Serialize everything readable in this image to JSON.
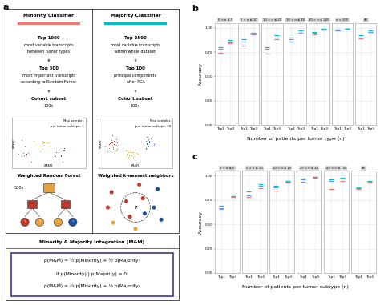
{
  "diagram": {
    "panel_label": "a",
    "query_symbol": "?",
    "columns": [
      {
        "title": "Minority Classifier",
        "color": "#f8766d",
        "steps": [
          [
            "Top 1000",
            "most variable transcripts",
            "between tumor types"
          ],
          [
            "Top 300",
            "most important transcripts",
            "according to Random Forest"
          ],
          [
            "Cohort subset",
            "100x"
          ]
        ],
        "umap": {
          "note": [
            "Max samples",
            "per tumor subtype: 3"
          ],
          "axes": [
            "UMAP1",
            "UMAP2"
          ]
        },
        "model": "Weighted Random Forest",
        "repeat": "500x"
      },
      {
        "title": "Majority Classifier",
        "color": "#00bfc4",
        "steps": [
          [
            "Top 2500",
            "most variable transcripts",
            "within whole dataset"
          ],
          [
            "Top 100",
            "principal components",
            "after PCA"
          ],
          [
            "Cohort subset",
            "100x"
          ]
        ],
        "umap": {
          "note": [
            "Max samples",
            "per tumor subtype: 30"
          ],
          "axes": [
            "UMAP1",
            "UMAP2"
          ]
        },
        "model": "Weighted k-nearest neighbors"
      }
    ],
    "integration": {
      "title": "Minority & Majority integration (M&M)",
      "lines": [
        "p(M&M) = ½ p(Minority) + ½ p(Majority)",
        "If p(Minority) | p(Majority) = 0;",
        "p(M&M) = ⅔ p(Minority) + ⅓ p(Majority)"
      ]
    }
  },
  "chart_data": [
    {
      "panel_label": "b",
      "type": "scatter",
      "marker": "line",
      "grid": true,
      "ylabel": "Accuracy",
      "xlabel": "Number of patients per tumor type (n)",
      "ylim": [
        0,
        1.05
      ],
      "yticks": [
        {
          "value": 0,
          "label": "0.00"
        },
        {
          "value": 0.25,
          "label": "0.25"
        },
        {
          "value": 0.5,
          "label": "0.50"
        },
        {
          "value": 0.75,
          "label": "0.75"
        },
        {
          "value": 1,
          "label": "1.00"
        }
      ],
      "categories": [
        "Top1",
        "Top3"
      ],
      "facets": [
        {
          "title": "0 < n ≤ 5",
          "series": [
            {
              "color": "#f8766d",
              "values": [
                0.74,
                0.84
              ]
            },
            {
              "color": "#619cff",
              "values": [
                0.78,
                0.85
              ]
            },
            {
              "color": "#00bfc4",
              "values": [
                0.8,
                0.87
              ]
            }
          ]
        },
        {
          "title": "5 < n ≤ 10",
          "series": [
            {
              "color": "#f8766d",
              "values": [
                0.82,
                0.93
              ]
            },
            {
              "color": "#619cff",
              "values": [
                0.86,
                0.93
              ]
            },
            {
              "color": "#00bfc4",
              "values": [
                0.88,
                0.95
              ]
            }
          ]
        },
        {
          "title": "10 < n ≤ 20",
          "series": [
            {
              "color": "#f8766d",
              "values": [
                0.78,
                0.9
              ]
            },
            {
              "color": "#619cff",
              "values": [
                0.73,
                0.88
              ]
            },
            {
              "color": "#00bfc4",
              "values": [
                0.8,
                0.92
              ]
            }
          ]
        },
        {
          "title": "20 < n ≤ 40",
          "series": [
            {
              "color": "#f8766d",
              "values": [
                0.88,
                0.95
              ]
            },
            {
              "color": "#619cff",
              "values": [
                0.86,
                0.95
              ]
            },
            {
              "color": "#00bfc4",
              "values": [
                0.9,
                0.97
              ]
            }
          ]
        },
        {
          "title": "40 < n ≤ 100",
          "series": [
            {
              "color": "#f8766d",
              "values": [
                0.93,
                0.98
              ]
            },
            {
              "color": "#619cff",
              "values": [
                0.95,
                0.98
              ]
            },
            {
              "color": "#00bfc4",
              "values": [
                0.96,
                0.99
              ]
            }
          ]
        },
        {
          "title": "n > 100",
          "series": [
            {
              "color": "#f8766d",
              "values": [
                0.97,
                0.99
              ]
            },
            {
              "color": "#619cff",
              "values": [
                0.97,
                0.99
              ]
            },
            {
              "color": "#00bfc4",
              "values": [
                0.98,
                0.99
              ]
            }
          ]
        },
        {
          "title": "All",
          "series": [
            {
              "color": "#f8766d",
              "values": [
                0.89,
                0.96
              ]
            },
            {
              "color": "#619cff",
              "values": [
                0.9,
                0.96
              ]
            },
            {
              "color": "#00bfc4",
              "values": [
                0.92,
                0.97
              ]
            }
          ]
        }
      ]
    },
    {
      "panel_label": "c",
      "type": "scatter",
      "marker": "line",
      "grid": true,
      "ylabel": "Accuracy",
      "xlabel": "Number of patients per tumor subtype (n)",
      "ylim": [
        0,
        1.05
      ],
      "yticks": [
        {
          "value": 0,
          "label": "0.00"
        },
        {
          "value": 0.25,
          "label": "0.25"
        },
        {
          "value": 0.5,
          "label": "0.50"
        },
        {
          "value": 0.75,
          "label": "0.75"
        },
        {
          "value": 1,
          "label": "1.00"
        }
      ],
      "categories": [
        "Top1",
        "Top3"
      ],
      "facets": [
        {
          "title": "0 < n ≤ 5",
          "series": [
            {
              "color": "#f8766d",
              "values": [
                0.66,
                0.78
              ]
            },
            {
              "color": "#619cff",
              "values": [
                0.67,
                0.79
              ]
            },
            {
              "color": "#00bfc4",
              "values": [
                0.69,
                0.81
              ]
            }
          ]
        },
        {
          "title": "5 < n ≤ 10",
          "series": [
            {
              "color": "#f8766d",
              "values": [
                0.78,
                0.87
              ]
            },
            {
              "color": "#619cff",
              "values": [
                0.8,
                0.9
              ]
            },
            {
              "color": "#00bfc4",
              "values": [
                0.84,
                0.91
              ]
            }
          ]
        },
        {
          "title": "10 < n ≤ 20",
          "series": [
            {
              "color": "#f8766d",
              "values": [
                0.85,
                0.93
              ]
            },
            {
              "color": "#619cff",
              "values": [
                0.88,
                0.94
              ]
            },
            {
              "color": "#00bfc4",
              "values": [
                0.9,
                0.95
              ]
            }
          ]
        },
        {
          "title": "20 < n ≤ 40",
          "series": [
            {
              "color": "#f8766d",
              "values": [
                0.94,
                0.98
              ]
            },
            {
              "color": "#619cff",
              "values": [
                0.96,
                0.99
              ]
            },
            {
              "color": "#00bfc4",
              "values": [
                0.97,
                0.99
              ]
            }
          ]
        },
        {
          "title": "40 < n ≤ 100",
          "series": [
            {
              "color": "#f8766d",
              "values": [
                0.86,
                0.95
              ]
            },
            {
              "color": "#619cff",
              "values": [
                0.95,
                0.97
              ]
            },
            {
              "color": "#00bfc4",
              "values": [
                0.96,
                0.98
              ]
            }
          ]
        },
        {
          "title": "All",
          "series": [
            {
              "color": "#f8766d",
              "values": [
                0.86,
                0.93
              ]
            },
            {
              "color": "#619cff",
              "values": [
                0.87,
                0.94
              ]
            },
            {
              "color": "#00bfc4",
              "values": [
                0.88,
                0.95
              ]
            }
          ]
        }
      ]
    }
  ]
}
